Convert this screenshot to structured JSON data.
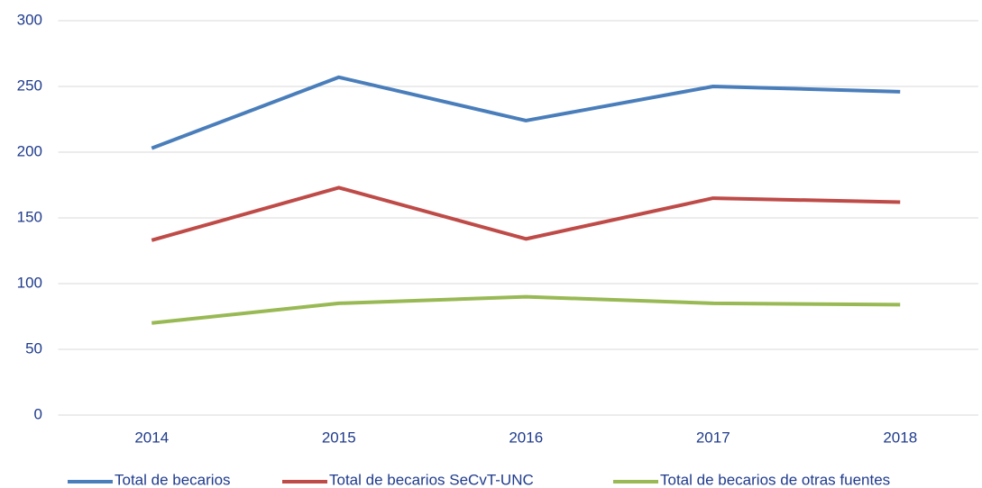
{
  "chart_data": {
    "type": "line",
    "categories": [
      "2014",
      "2015",
      "2016",
      "2017",
      "2018"
    ],
    "series": [
      {
        "name": "Total de becarios",
        "color": "#4a7ebb",
        "values": [
          203,
          257,
          224,
          250,
          246
        ]
      },
      {
        "name": "Total de becarios SeCvT-UNC",
        "color": "#be4b48",
        "values": [
          133,
          173,
          134,
          165,
          162
        ]
      },
      {
        "name": "Total de becarios de otras fuentes",
        "color": "#98b954",
        "values": [
          70,
          85,
          90,
          85,
          84
        ]
      }
    ],
    "ylim": [
      0,
      300
    ],
    "yticks": [
      0,
      50,
      100,
      150,
      200,
      250,
      300
    ],
    "grid": true,
    "legend": "bottom"
  }
}
